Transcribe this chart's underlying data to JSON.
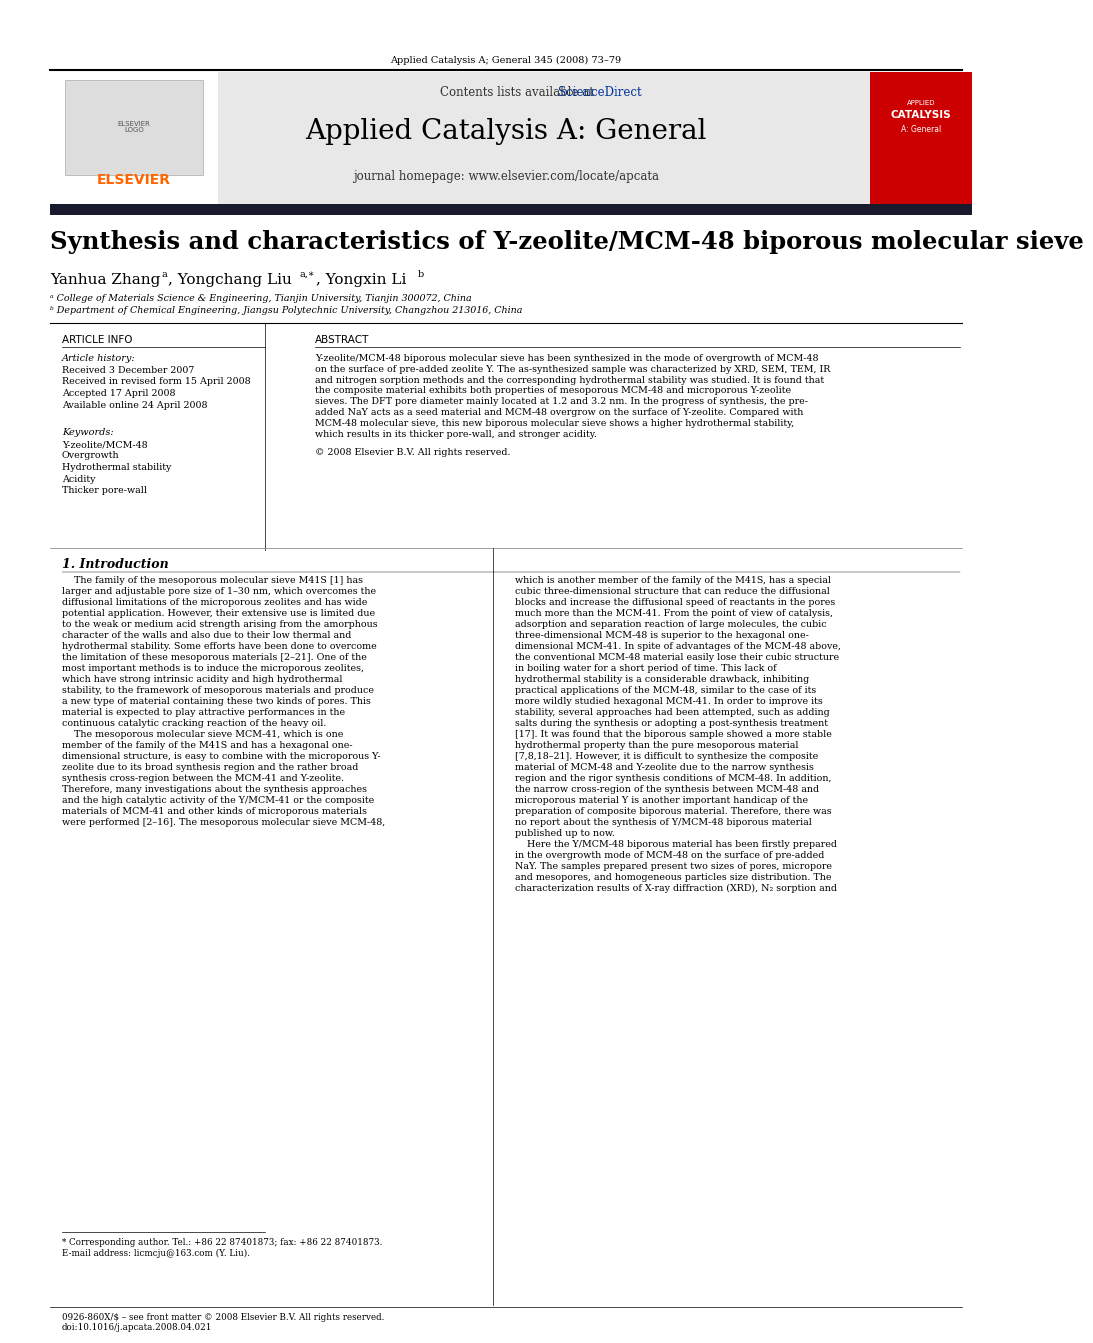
{
  "page_background": "#ffffff",
  "header_text": "Applied Catalysis A; General 345 (2008) 73–79",
  "journal_banner_bg": "#e8e8e8",
  "journal_banner_text": "Applied Catalysis A: General",
  "journal_banner_subtext_plain": "Contents lists available at ",
  "journal_banner_link": "ScienceDirect",
  "journal_banner_homepage": "journal homepage: www.elsevier.com/locate/apcata",
  "elsevier_color": "#ff6600",
  "sciencedirect_color": "#003399",
  "dark_bar_color": "#1a1a2e",
  "paper_title": "Synthesis and characteristics of Y-zeolite/MCM-48 biporous molecular sieve",
  "affiliation_a": "ᵃ College of Materials Science & Engineering, Tianjin University, Tianjin 300072, China",
  "affiliation_b": "ᵇ Department of Chemical Engineering, Jiangsu Polytechnic University, Changzhou 213016, China",
  "article_info_header": "ARTICLE INFO",
  "abstract_header": "ABSTRACT",
  "article_history_label": "Article history:",
  "received_1": "Received 3 December 2007",
  "received_2": "Received in revised form 15 April 2008",
  "accepted": "Accepted 17 April 2008",
  "available": "Available online 24 April 2008",
  "keywords_label": "Keywords:",
  "keywords": [
    "Y-zeolite/MCM-48",
    "Overgrowth",
    "Hydrothermal stability",
    "Acidity",
    "Thicker pore-wall"
  ],
  "abstract_lines": [
    "Y-zeolite/MCM-48 biporous molecular sieve has been synthesized in the mode of overgrowth of MCM-48",
    "on the surface of pre-added zeolite Y. The as-synthesized sample was characterized by XRD, SEM, TEM, IR",
    "and nitrogen sorption methods and the corresponding hydrothermal stability was studied. It is found that",
    "the composite material exhibits both properties of mesoporous MCM-48 and microporous Y-zeolite",
    "sieves. The DFT pore diameter mainly located at 1.2 and 3.2 nm. In the progress of synthesis, the pre-",
    "added NaY acts as a seed material and MCM-48 overgrow on the surface of Y-zeolite. Compared with",
    "MCM-48 molecular sieve, this new biporous molecular sieve shows a higher hydrothermal stability,",
    "which results in its thicker pore-wall, and stronger acidity."
  ],
  "abstract_copyright": "© 2008 Elsevier B.V. All rights reserved.",
  "section1_title": "1. Introduction",
  "intro_col1_lines": [
    "    The family of the mesoporous molecular sieve M41S [1] has",
    "larger and adjustable pore size of 1–30 nm, which overcomes the",
    "diffusional limitations of the microporous zeolites and has wide",
    "potential application. However, their extensive use is limited due",
    "to the weak or medium acid strength arising from the amorphous",
    "character of the walls and also due to their low thermal and",
    "hydrothermal stability. Some efforts have been done to overcome",
    "the limitation of these mesoporous materials [2–21]. One of the",
    "most important methods is to induce the microporous zeolites,",
    "which have strong intrinsic acidity and high hydrothermal",
    "stability, to the framework of mesoporous materials and produce",
    "a new type of material containing these two kinds of pores. This",
    "material is expected to play attractive performances in the",
    "continuous catalytic cracking reaction of the heavy oil.",
    "    The mesoporous molecular sieve MCM-41, which is one",
    "member of the family of the M41S and has a hexagonal one-",
    "dimensional structure, is easy to combine with the microporous Y-",
    "zeolite due to its broad synthesis region and the rather broad",
    "synthesis cross-region between the MCM-41 and Y-zeolite.",
    "Therefore, many investigations about the synthesis approaches",
    "and the high catalytic activity of the Y/MCM-41 or the composite",
    "materials of MCM-41 and other kinds of microporous materials",
    "were performed [2–16]. The mesoporous molecular sieve MCM-48,"
  ],
  "intro_col2_lines": [
    "which is another member of the family of the M41S, has a special",
    "cubic three-dimensional structure that can reduce the diffusional",
    "blocks and increase the diffusional speed of reactants in the pores",
    "much more than the MCM-41. From the point of view of catalysis,",
    "adsorption and separation reaction of large molecules, the cubic",
    "three-dimensional MCM-48 is superior to the hexagonal one-",
    "dimensional MCM-41. In spite of advantages of the MCM-48 above,",
    "the conventional MCM-48 material easily lose their cubic structure",
    "in boiling water for a short period of time. This lack of",
    "hydrothermal stability is a considerable drawback, inhibiting",
    "practical applications of the MCM-48, similar to the case of its",
    "more wildly studied hexagonal MCM-41. In order to improve its",
    "stability, several approaches had been attempted, such as adding",
    "salts during the synthesis or adopting a post-synthesis treatment",
    "[17]. It was found that the biporous sample showed a more stable",
    "hydrothermal property than the pure mesoporous material",
    "[7,8,18–21]. However, it is difficult to synthesize the composite",
    "material of MCM-48 and Y-zeolite due to the narrow synthesis",
    "region and the rigor synthesis conditions of MCM-48. In addition,",
    "the narrow cross-region of the synthesis between MCM-48 and",
    "microporous material Y is another important handicap of the",
    "preparation of composite biporous material. Therefore, there was",
    "no report about the synthesis of Y/MCM-48 biporous material",
    "published up to now.",
    "    Here the Y/MCM-48 biporous material has been firstly prepared",
    "in the overgrowth mode of MCM-48 on the surface of pre-added",
    "NaY. The samples prepared present two sizes of pores, micropore",
    "and mesopores, and homogeneous particles size distribution. The",
    "characterization results of X-ray diffraction (XRD), N₂ sorption and"
  ],
  "footnote_star": "* Corresponding author. Tel.: +86 22 87401873; fax: +86 22 87401873.",
  "footnote_email": "E-mail address: licmcju@163.com (Y. Liu).",
  "footer_issn": "0926-860X/$ – see front matter © 2008 Elsevier B.V. All rights reserved.",
  "footer_doi": "doi:10.1016/j.apcata.2008.04.021",
  "red_cover_color": "#cc0000"
}
